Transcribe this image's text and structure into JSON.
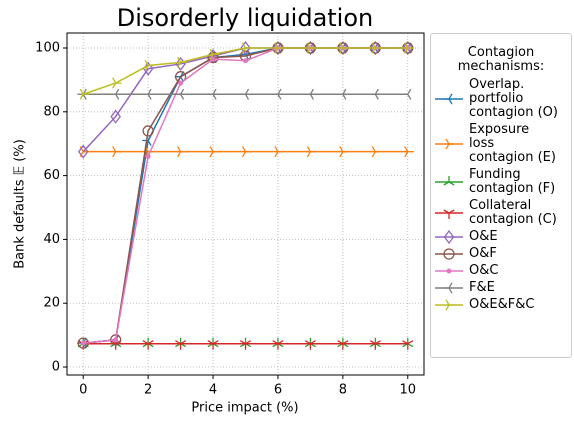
{
  "chart_data": {
    "type": "line",
    "title": "Disorderly liquidation",
    "x_label": "Price impact (%)",
    "y_label": "Bank defaults 𝔼 (%)",
    "x": [
      0,
      1,
      2,
      3,
      4,
      5,
      6,
      7,
      8,
      9,
      10
    ],
    "xlim": [
      -0.5,
      10.5
    ],
    "xticks": [
      0,
      2,
      4,
      6,
      8,
      10
    ],
    "ylim": [
      -2.5,
      104.7
    ],
    "yticks": [
      0,
      20,
      40,
      60,
      80,
      100
    ],
    "grid": true,
    "legend_title": "Contagion\nmechanisms:",
    "legend_position": "right",
    "series": [
      {
        "name": "Overlap.\nportfolio\ncontagion (O)",
        "color": "#1f77b4",
        "marker": "tri_left",
        "values": [
          7.5,
          8.5,
          71,
          91,
          97,
          98,
          100,
          100,
          100,
          100,
          100
        ]
      },
      {
        "name": "Exposure\nloss\ncontagion (E)",
        "color": "#ff7f0e",
        "marker": "tri_right",
        "values": [
          67.5,
          67.5,
          67.5,
          67.5,
          67.5,
          67.5,
          67.5,
          67.5,
          67.5,
          67.5,
          67.5
        ]
      },
      {
        "name": "Funding\ncontagion (F)",
        "color": "#2ca02c",
        "marker": "tri_up",
        "values": [
          7.3,
          7.3,
          7.3,
          7.3,
          7.3,
          7.3,
          7.3,
          7.3,
          7.3,
          7.3,
          7.3
        ]
      },
      {
        "name": "Collateral\ncontagion (C)",
        "color": "#d62728",
        "marker": "tri_down",
        "values": [
          7.3,
          7.3,
          7.3,
          7.3,
          7.3,
          7.3,
          7.3,
          7.3,
          7.3,
          7.3,
          7.3
        ]
      },
      {
        "name": "O&E",
        "color": "#9467bd",
        "marker": "diamond",
        "values": [
          67.5,
          78.5,
          93.5,
          95,
          97.5,
          100,
          100,
          100,
          100,
          100,
          100
        ]
      },
      {
        "name": "O&F",
        "color": "#8c564b",
        "marker": "circle",
        "values": [
          7.5,
          8.5,
          74,
          91,
          97,
          97.5,
          100,
          100,
          100,
          100,
          100
        ]
      },
      {
        "name": "O&C",
        "color": "#e377c2",
        "marker": "dot",
        "values": [
          7.5,
          8.5,
          66,
          89,
          96.5,
          96,
          100,
          100,
          100,
          100,
          100
        ]
      },
      {
        "name": "F&E",
        "color": "#7f7f7f",
        "marker": "tri_left",
        "values": [
          85.5,
          85.5,
          85.5,
          85.5,
          85.5,
          85.5,
          85.5,
          85.5,
          85.5,
          85.5,
          85.5
        ]
      },
      {
        "name": "O&E&F&C",
        "color": "#bcbd22",
        "marker": "tri_right",
        "values": [
          85.5,
          89,
          94.5,
          95.5,
          98,
          100,
          100,
          100,
          100,
          100,
          100
        ]
      }
    ]
  }
}
